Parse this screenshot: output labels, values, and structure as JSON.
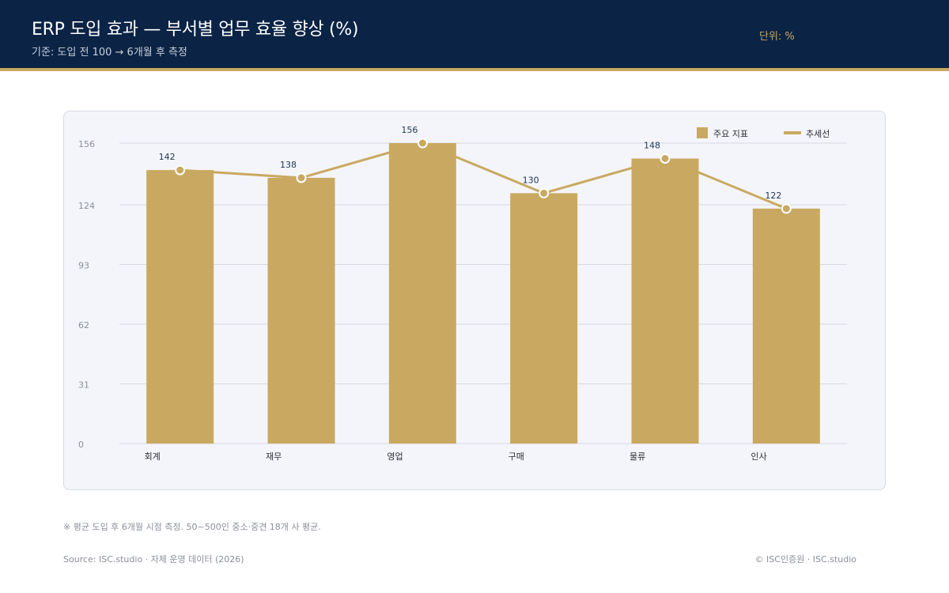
{
  "header": {
    "title": "ERP 도입 효과 — 부서별 업무 효율 향상 (%)",
    "subtitle": "기준: 도입 전 100 → 6개월 후 측정",
    "unit": "단위: %"
  },
  "colors": {
    "navy": "#0b2345",
    "gold": "#c9a961",
    "card": "#f4f5fa"
  },
  "chart_data": {
    "type": "bar",
    "categories": [
      "회계",
      "재무",
      "영업",
      "구매",
      "물류",
      "인사"
    ],
    "series": [
      {
        "name": "주요 지표",
        "values": [
          142,
          138,
          156,
          130,
          148,
          122
        ]
      },
      {
        "name": "추세선",
        "type": "line",
        "values": [
          142,
          138,
          156,
          130,
          148,
          122
        ]
      }
    ],
    "yticks": [
      0,
      31,
      62,
      93,
      124,
      156
    ],
    "ylim": [
      0,
      156
    ],
    "grid": true,
    "legend": "top-right",
    "data_labels": true
  },
  "footer": {
    "note": "※ 평균 도입 후 6개월 시점 측정. 50~500인 중소·중견 18개 사 평균.",
    "source": "Source: ISC.studio · 자체 운영 데이터 (2026)",
    "copyright": "© ISC인증원 · ISC.studio"
  }
}
